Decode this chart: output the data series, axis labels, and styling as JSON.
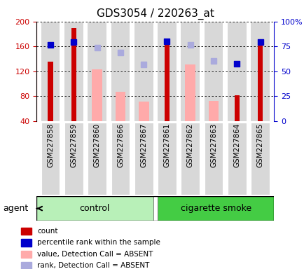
{
  "title": "GDS3054 / 220263_at",
  "samples": [
    "GSM227858",
    "GSM227859",
    "GSM227860",
    "GSM227866",
    "GSM227867",
    "GSM227861",
    "GSM227862",
    "GSM227863",
    "GSM227864",
    "GSM227865"
  ],
  "groups": [
    "control",
    "control",
    "control",
    "control",
    "control",
    "cigarette smoke",
    "cigarette smoke",
    "cigarette smoke",
    "cigarette smoke",
    "cigarette smoke"
  ],
  "count_values": [
    136,
    190,
    null,
    null,
    null,
    168,
    null,
    null,
    82,
    165
  ],
  "count_color": "#cc0000",
  "absent_value_bars": [
    null,
    null,
    123,
    87,
    71,
    null,
    131,
    72,
    null,
    null
  ],
  "absent_value_color": "#ffaaaa",
  "rank_blue_dots": [
    163,
    167,
    null,
    null,
    null,
    168,
    null,
    null,
    132,
    167
  ],
  "rank_absent_dots": [
    null,
    null,
    158,
    150,
    131,
    null,
    163,
    137,
    null,
    null
  ],
  "rank_dot_color_present": "#0000cc",
  "rank_dot_color_absent": "#aaaadd",
  "ylim_left": [
    40,
    200
  ],
  "ylim_right": [
    0,
    100
  ],
  "yticks_left": [
    40,
    80,
    120,
    160,
    200
  ],
  "yticks_right": [
    0,
    25,
    50,
    75,
    100
  ],
  "ytick_labels_right": [
    "0",
    "25",
    "50",
    "75",
    "100%"
  ],
  "group_labels": [
    "control",
    "cigarette smoke"
  ],
  "group_colors": [
    "#ccffcc",
    "#66dd66"
  ],
  "bar_bg_color": "#dddddd",
  "legend_items": [
    {
      "label": "count",
      "color": "#cc0000",
      "type": "square"
    },
    {
      "label": "percentile rank within the sample",
      "color": "#0000cc",
      "type": "square"
    },
    {
      "label": "value, Detection Call = ABSENT",
      "color": "#ffaaaa",
      "type": "square"
    },
    {
      "label": "rank, Detection Call = ABSENT",
      "color": "#aaaadd",
      "type": "square"
    }
  ]
}
